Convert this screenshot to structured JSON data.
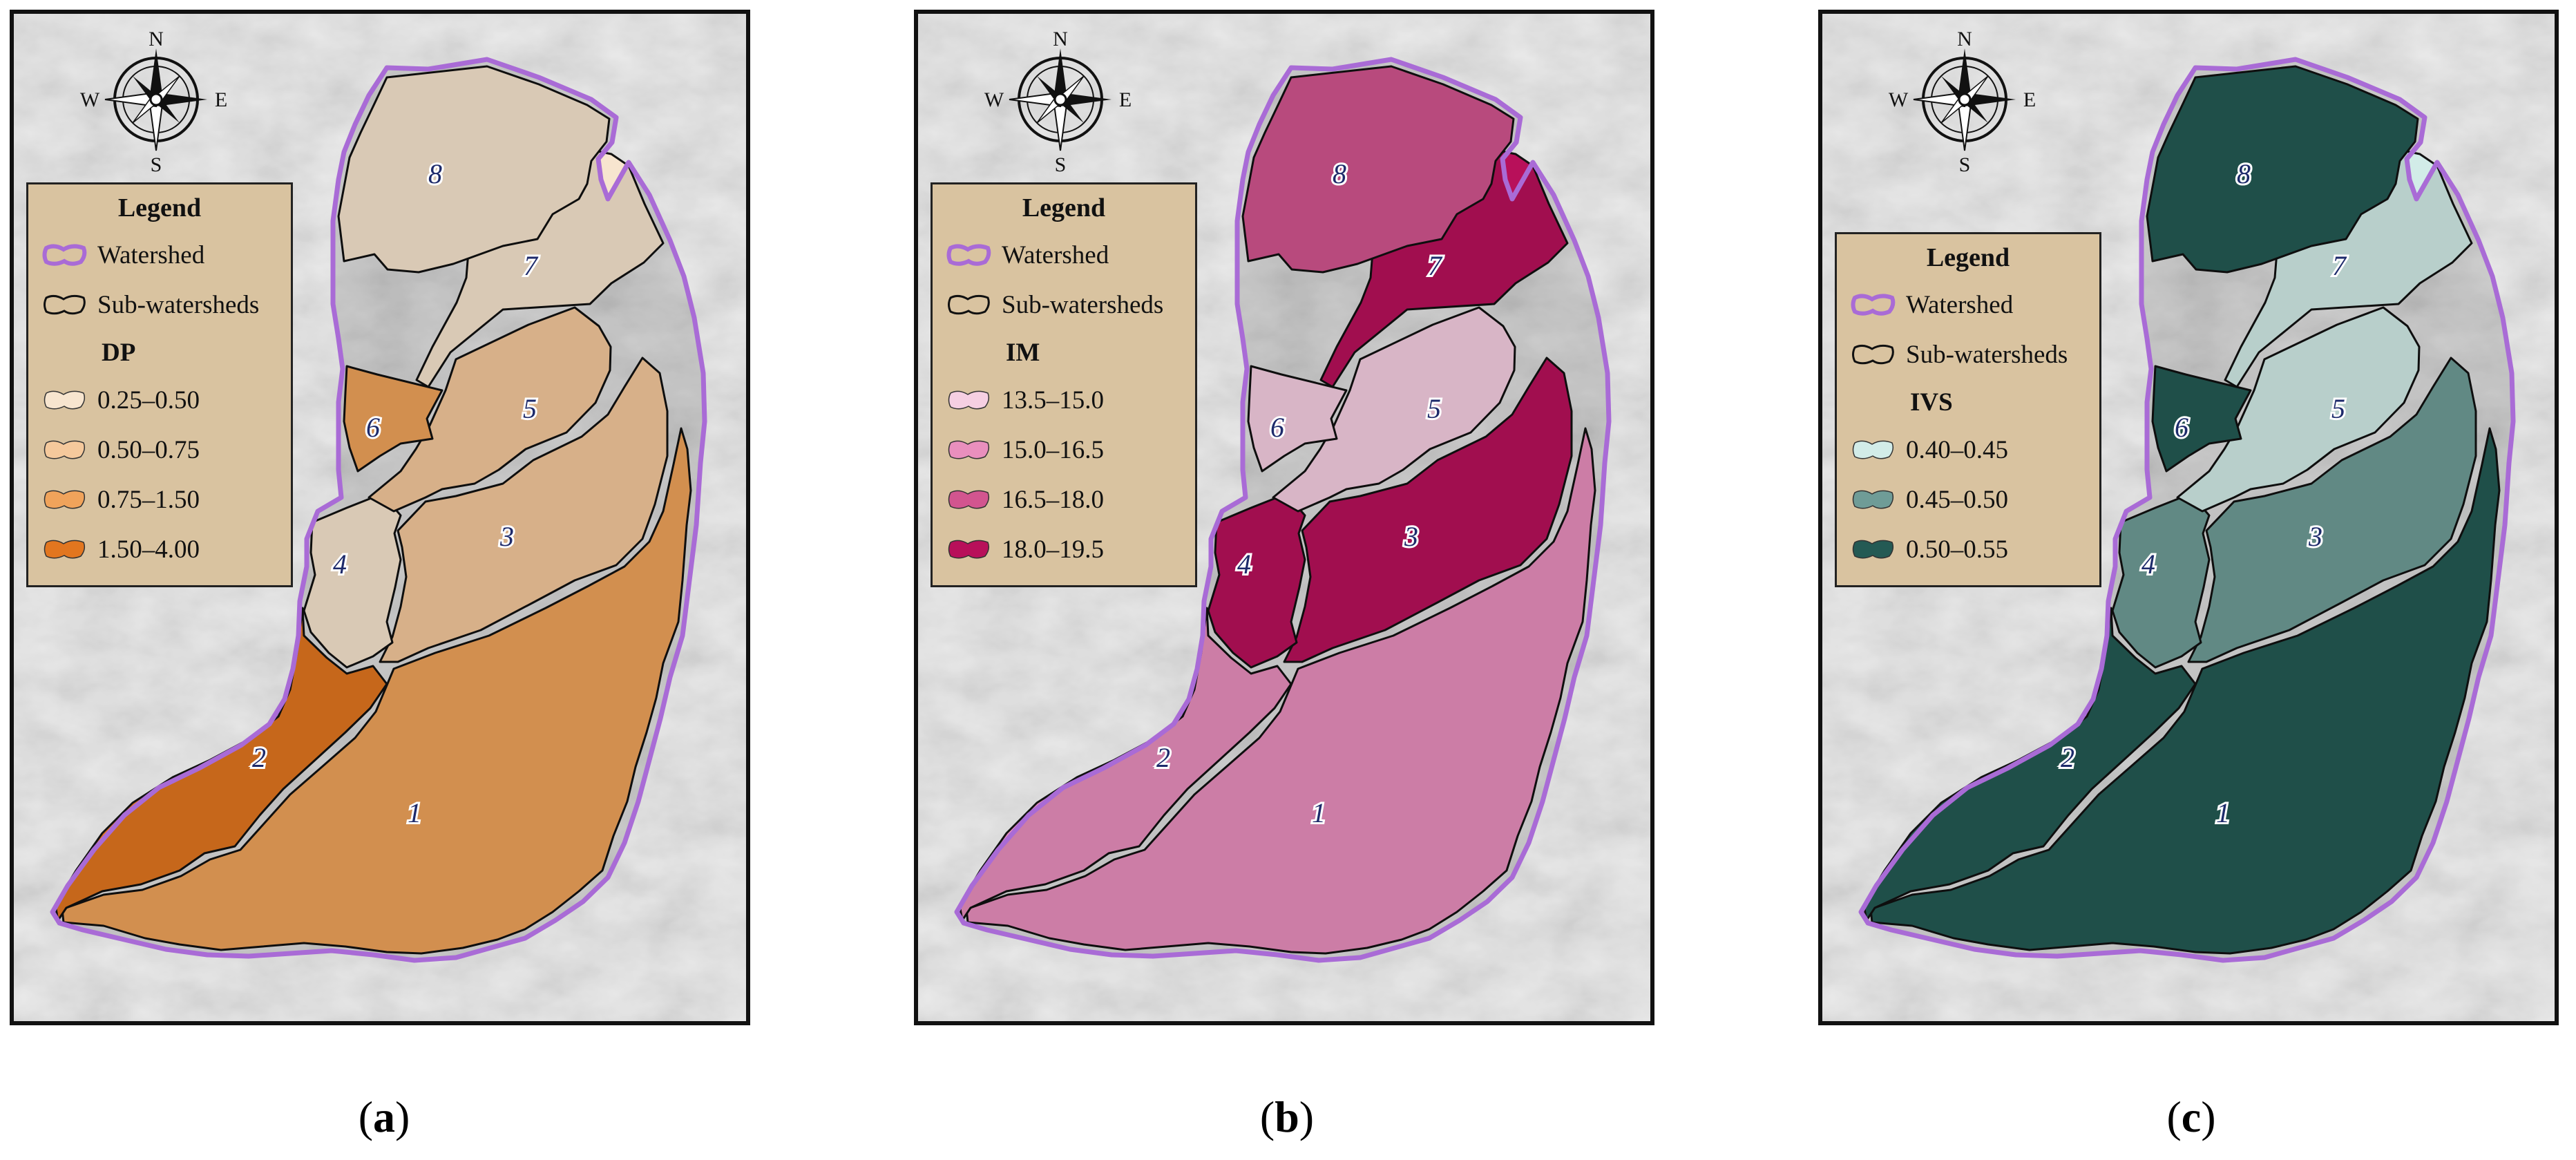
{
  "map_data": {
    "compass_labels": {
      "n": "N",
      "s": "S",
      "e": "E",
      "w": "W"
    },
    "legend_title": "Legend",
    "watershed_label": "Watershed",
    "subwatersheds_label": "Sub-watersheds",
    "subwatershed_ids": [
      "1",
      "2",
      "3",
      "4",
      "5",
      "6",
      "7",
      "8"
    ],
    "colors": {
      "watershed_outline": "#a96bd6",
      "subwatershed_outline": "#111111",
      "label_text": "#1d2a6b"
    },
    "panels": [
      {
        "caption": "a",
        "variable": "DP",
        "classes": [
          {
            "label": "0.25–0.50",
            "color": "#f7e5cf"
          },
          {
            "label": "0.50–0.75",
            "color": "#f5c99c"
          },
          {
            "label": "0.75–1.50",
            "color": "#f0a35b"
          },
          {
            "label": "1.50–4.00",
            "color": "#e2761f"
          }
        ],
        "assignment": {
          "1": 2,
          "2": 3,
          "3": 1,
          "4": 0,
          "5": 1,
          "6": 2,
          "7": 0,
          "8": 0
        }
      },
      {
        "caption": "b",
        "variable": "IM",
        "classes": [
          {
            "label": "13.5–15.0",
            "color": "#f6cfe2"
          },
          {
            "label": "15.0–16.5",
            "color": "#e98fbd"
          },
          {
            "label": "16.5–18.0",
            "color": "#d2558f"
          },
          {
            "label": "18.0–19.5",
            "color": "#b8105a"
          }
        ],
        "assignment": {
          "1": 1,
          "2": 1,
          "3": 3,
          "4": 3,
          "5": 0,
          "6": 0,
          "7": 3,
          "8": 2
        }
      },
      {
        "caption": "c",
        "variable": "IVS",
        "classes": [
          {
            "label": "0.40–0.45",
            "color": "#d2ece8"
          },
          {
            "label": "0.45–0.50",
            "color": "#6f9c97"
          },
          {
            "label": "0.50–0.55",
            "color": "#245a54"
          }
        ],
        "assignment": {
          "1": 2,
          "2": 2,
          "3": 1,
          "4": 1,
          "5": 0,
          "6": 2,
          "7": 0,
          "8": 2
        }
      }
    ]
  }
}
